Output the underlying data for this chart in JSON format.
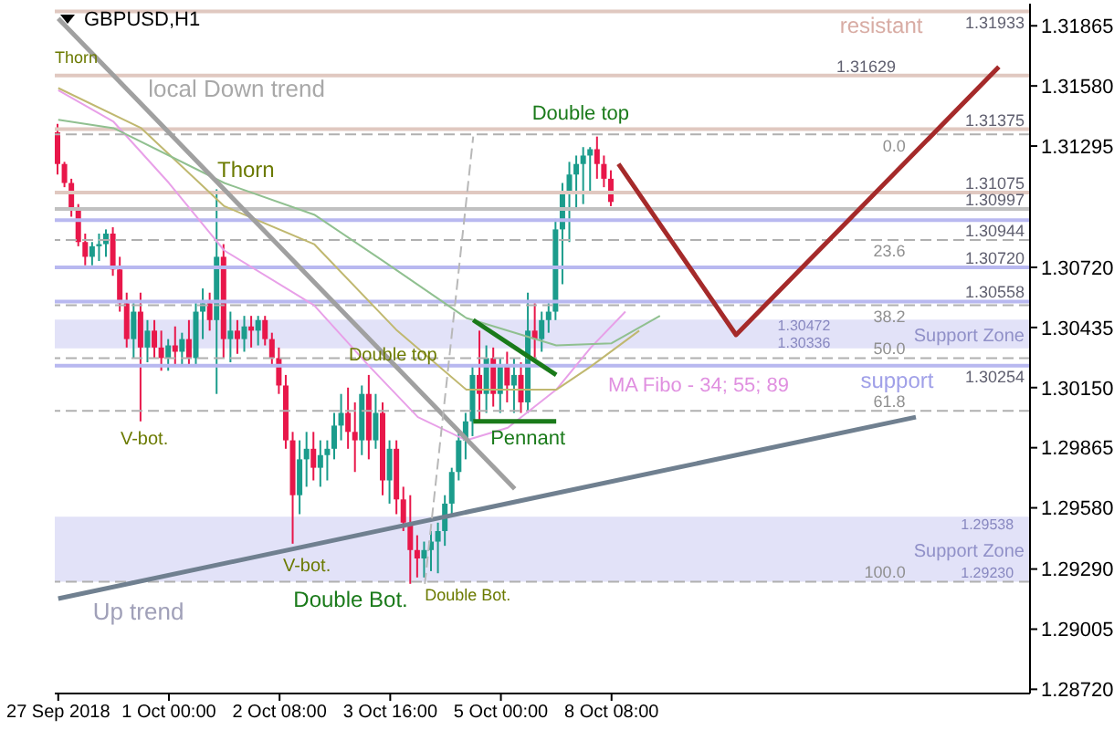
{
  "chart_data": {
    "type": "candlestick",
    "title": "GBPUSD,H1",
    "categories": [
      "27 Sep 2018",
      null,
      null,
      null,
      null,
      null,
      null,
      null,
      null,
      null,
      null,
      null,
      null,
      null,
      null,
      null,
      "1 Oct 00:00",
      null,
      null,
      null,
      null,
      null,
      null,
      null,
      null,
      null,
      null,
      null,
      null,
      null,
      null,
      null,
      "2 Oct 08:00",
      null,
      null,
      null,
      null,
      null,
      null,
      null,
      null,
      null,
      null,
      null,
      null,
      null,
      null,
      null,
      "3 Oct 16:00",
      null,
      null,
      null,
      null,
      null,
      null,
      null,
      null,
      null,
      null,
      null,
      null,
      null,
      null,
      null,
      "5 Oct 00:00",
      null,
      null,
      null,
      null,
      null,
      null,
      null,
      null,
      null,
      null,
      null,
      null,
      null,
      null,
      null,
      "8 Oct 08:00",
      null,
      null,
      null,
      null,
      null,
      null,
      null,
      null,
      null,
      null,
      null,
      null,
      null,
      null,
      null,
      null,
      null,
      null,
      null,
      null,
      null,
      null,
      null,
      null,
      null,
      null,
      null,
      null,
      null,
      null,
      null,
      null,
      null,
      null,
      null,
      null,
      null,
      null,
      null,
      null,
      null,
      null,
      null,
      null,
      null,
      null,
      null,
      null,
      null,
      null,
      null,
      null,
      null,
      null,
      null,
      null,
      null,
      null,
      null,
      null
    ],
    "ohlc": [
      [
        1.3136,
        1.314,
        1.3116,
        1.3121
      ],
      [
        1.3121,
        1.3122,
        1.311,
        1.3112
      ],
      [
        1.3112,
        1.3114,
        1.3096,
        1.3099
      ],
      [
        1.3099,
        1.3102,
        1.3082,
        1.3084
      ],
      [
        1.3084,
        1.3088,
        1.3073,
        1.3077
      ],
      [
        1.3077,
        1.3084,
        1.3073,
        1.3082
      ],
      [
        1.3082,
        1.3088,
        1.3075,
        1.3083
      ],
      [
        1.3083,
        1.309,
        1.3077,
        1.3088
      ],
      [
        1.3088,
        1.3091,
        1.3068,
        1.3071
      ],
      [
        1.3071,
        1.3077,
        1.3051,
        1.3055
      ],
      [
        1.3055,
        1.306,
        1.3034,
        1.3038
      ],
      [
        1.3038,
        1.3055,
        1.3029,
        1.3051
      ],
      [
        1.3051,
        1.306,
        1.2999,
        1.3034
      ],
      [
        1.3034,
        1.3047,
        1.3027,
        1.3042
      ],
      [
        1.3042,
        1.3047,
        1.3029,
        1.3034
      ],
      [
        1.3034,
        1.3042,
        1.3023,
        1.3029
      ],
      [
        1.3029,
        1.3038,
        1.3023,
        1.3035
      ],
      [
        1.3035,
        1.3044,
        1.3025,
        1.3032
      ],
      [
        1.3032,
        1.3041,
        1.3025,
        1.3038
      ],
      [
        1.3038,
        1.3047,
        1.3025,
        1.3029
      ],
      [
        1.3029,
        1.3055,
        1.3025,
        1.3051
      ],
      [
        1.3051,
        1.3062,
        1.3038,
        1.3055
      ],
      [
        1.3055,
        1.306,
        1.3042,
        1.3047
      ],
      [
        1.3047,
        1.3109,
        1.3012,
        1.3077
      ],
      [
        1.3077,
        1.3083,
        1.3029,
        1.3038
      ],
      [
        1.3038,
        1.3051,
        1.3027,
        1.3042
      ],
      [
        1.3042,
        1.3047,
        1.3031,
        1.3038
      ],
      [
        1.3038,
        1.3049,
        1.3032,
        1.3044
      ],
      [
        1.3044,
        1.3049,
        1.3034,
        1.3042
      ],
      [
        1.3042,
        1.3049,
        1.3035,
        1.3047
      ],
      [
        1.3047,
        1.3049,
        1.3035,
        1.3038
      ],
      [
        1.3038,
        1.3041,
        1.3025,
        1.3029
      ],
      [
        1.3029,
        1.3034,
        1.3012,
        1.3016
      ],
      [
        1.3016,
        1.3021,
        1.2986,
        1.299
      ],
      [
        1.299,
        1.2994,
        1.2941,
        1.2964
      ],
      [
        1.2964,
        1.299,
        1.2955,
        1.2981
      ],
      [
        1.2981,
        1.2994,
        1.2968,
        1.2986
      ],
      [
        1.2986,
        1.2994,
        1.2971,
        1.2977
      ],
      [
        1.2977,
        1.299,
        1.2968,
        1.2983
      ],
      [
        1.2983,
        1.299,
        1.2971,
        1.2986
      ],
      [
        1.2986,
        1.3003,
        1.2981,
        1.2997
      ],
      [
        1.2997,
        1.3012,
        1.299,
        1.3003
      ],
      [
        1.3003,
        1.3015,
        1.2986,
        1.2994
      ],
      [
        1.2994,
        1.3008,
        1.2975,
        1.299
      ],
      [
        1.299,
        1.3016,
        1.2983,
        1.3012
      ],
      [
        1.3012,
        1.3021,
        1.2981,
        1.299
      ],
      [
        1.299,
        1.3012,
        1.2986,
        1.3003
      ],
      [
        1.3003,
        1.3008,
        1.2964,
        1.2971
      ],
      [
        1.2971,
        1.299,
        1.296,
        1.2986
      ],
      [
        1.2986,
        1.299,
        1.2955,
        1.2962
      ],
      [
        1.2962,
        1.2968,
        1.2947,
        1.2951
      ],
      [
        1.2951,
        1.2964,
        1.2922,
        1.2938
      ],
      [
        1.2938,
        1.2945,
        1.2925,
        1.2934
      ],
      [
        1.2934,
        1.2942,
        1.2925,
        1.2938
      ],
      [
        1.2938,
        1.2947,
        1.2928,
        1.2942
      ],
      [
        1.2942,
        1.2951,
        1.2927,
        1.2947
      ],
      [
        1.2947,
        1.2964,
        1.294,
        1.296
      ],
      [
        1.296,
        1.2977,
        1.2954,
        1.2975
      ],
      [
        1.2975,
        1.2994,
        1.2971,
        1.299
      ],
      [
        1.299,
        1.3003,
        1.2981,
        1.2999
      ],
      [
        1.2999,
        1.3025,
        1.2992,
        1.3021
      ],
      [
        1.3021,
        1.3042,
        1.2999,
        1.3012
      ],
      [
        1.3012,
        1.3035,
        1.3003,
        1.3029
      ],
      [
        1.3029,
        1.3034,
        1.3006,
        1.3012
      ],
      [
        1.3012,
        1.3029,
        1.3003,
        1.3025
      ],
      [
        1.3025,
        1.3032,
        1.3008,
        1.3016
      ],
      [
        1.3016,
        1.3029,
        1.3003,
        1.3021
      ],
      [
        1.3021,
        1.3027,
        1.3003,
        1.3008
      ],
      [
        1.3008,
        1.306,
        1.3003,
        1.3042
      ],
      [
        1.3042,
        1.3055,
        1.3029,
        1.3038
      ],
      [
        1.3038,
        1.3051,
        1.3032,
        1.3047
      ],
      [
        1.3047,
        1.3055,
        1.3041,
        1.3051
      ],
      [
        1.3051,
        1.3095,
        1.3047,
        1.309
      ],
      [
        1.309,
        1.3112,
        1.3064,
        1.3108
      ],
      [
        1.3108,
        1.3122,
        1.3084,
        1.3116
      ],
      [
        1.3116,
        1.3125,
        1.3099,
        1.3121
      ],
      [
        1.3121,
        1.3129,
        1.3102,
        1.3125
      ],
      [
        1.3125,
        1.3129,
        1.3108,
        1.3128
      ],
      [
        1.3128,
        1.3134,
        1.3114,
        1.3121
      ],
      [
        1.3121,
        1.3125,
        1.311,
        1.3114
      ],
      [
        1.3114,
        1.3118,
        1.3101,
        1.3103
      ],
      null,
      null,
      null,
      null,
      null,
      null,
      null,
      null,
      null,
      null,
      null,
      null,
      null,
      null,
      null,
      null,
      null,
      null,
      null,
      null,
      null,
      null,
      null,
      null,
      null,
      null,
      null,
      null,
      null,
      null,
      null,
      null,
      null,
      null,
      null,
      null,
      null,
      null,
      null,
      null,
      null,
      null,
      null,
      null,
      null,
      null,
      null,
      null,
      null,
      null,
      null,
      null,
      null,
      null,
      null,
      null,
      null,
      null,
      null,
      null
    ],
    "series": [
      {
        "type": "line",
        "color": "#e8a0e8",
        "values": [
          1.3156,
          null,
          null,
          null,
          null,
          null,
          null,
          null,
          1.3141,
          null,
          null,
          null,
          null,
          null,
          null,
          null,
          1.3112,
          null,
          null,
          null,
          null,
          null,
          null,
          null,
          1.308,
          null,
          null,
          null,
          null,
          null,
          null,
          null,
          null,
          null,
          null,
          null,
          null,
          1.3054,
          null,
          null,
          null,
          null,
          null,
          null,
          null,
          1.3025,
          null,
          null,
          null,
          null,
          null,
          null,
          1.3001,
          null,
          null,
          null,
          null,
          null,
          null,
          1.299,
          null,
          null,
          null,
          null,
          null,
          1.2996,
          null,
          null,
          null,
          null,
          null,
          null,
          1.3014,
          null,
          null,
          null,
          null,
          1.3034,
          null,
          null,
          null,
          null,
          1.3051,
          null,
          null,
          null,
          null,
          null,
          null,
          null,
          null,
          null,
          null,
          null,
          null,
          null,
          null,
          null,
          null,
          null,
          null,
          null,
          null,
          null,
          null,
          null,
          null,
          null,
          null,
          null,
          null,
          null,
          null,
          null,
          null,
          null,
          null,
          null,
          null,
          null,
          null,
          null,
          null,
          null,
          null,
          null,
          null,
          null,
          null,
          null,
          null,
          null,
          null,
          null,
          null,
          null,
          null,
          null,
          null,
          null,
          null
        ]
      },
      {
        "type": "line",
        "color": "#c0b870",
        "values": [
          1.3157,
          null,
          null,
          null,
          null,
          null,
          null,
          null,
          null,
          null,
          null,
          null,
          1.3138,
          null,
          null,
          null,
          null,
          null,
          null,
          null,
          null,
          null,
          null,
          null,
          1.3101,
          null,
          null,
          null,
          null,
          null,
          null,
          null,
          null,
          null,
          null,
          null,
          null,
          1.3083,
          null,
          null,
          null,
          null,
          null,
          null,
          null,
          null,
          null,
          null,
          null,
          1.3042,
          null,
          null,
          null,
          null,
          null,
          null,
          null,
          null,
          null,
          1.3014,
          null,
          null,
          null,
          null,
          null,
          null,
          null,
          null,
          null,
          null,
          null,
          null,
          1.3014,
          null,
          null,
          null,
          null,
          1.3025,
          null,
          null,
          null,
          null,
          null,
          null,
          1.3042,
          null,
          null,
          null,
          null,
          null,
          null,
          null,
          null,
          null,
          null,
          null,
          null,
          null,
          null,
          null,
          null,
          null,
          null,
          null,
          null,
          null,
          null,
          null,
          null,
          null,
          null,
          null,
          null,
          null,
          null,
          null,
          null,
          null,
          null,
          null,
          null,
          null,
          null,
          null,
          null,
          null,
          null,
          null,
          null,
          null,
          null,
          null,
          null,
          null,
          null,
          null,
          null,
          null,
          null,
          null,
          null
        ]
      },
      {
        "type": "line",
        "color": "#90c090",
        "values": [
          1.3142,
          null,
          null,
          null,
          null,
          null,
          null,
          null,
          1.3138,
          null,
          null,
          null,
          null,
          null,
          null,
          null,
          null,
          null,
          null,
          null,
          null,
          null,
          null,
          null,
          1.3112,
          null,
          null,
          null,
          null,
          null,
          null,
          null,
          null,
          null,
          null,
          null,
          null,
          1.3097,
          null,
          null,
          null,
          null,
          null,
          null,
          null,
          null,
          null,
          1.3075,
          null,
          null,
          null,
          null,
          null,
          null,
          null,
          null,
          null,
          null,
          null,
          1.3048,
          null,
          null,
          null,
          null,
          null,
          null,
          null,
          null,
          null,
          null,
          null,
          null,
          1.3035,
          null,
          null,
          null,
          null,
          null,
          null,
          null,
          1.3036,
          null,
          null,
          null,
          null,
          null,
          null,
          1.3049,
          null,
          null,
          null,
          null,
          null,
          null,
          null,
          null,
          null,
          null,
          null,
          null,
          null,
          null,
          null,
          null,
          null,
          null,
          null,
          null,
          null,
          null,
          null,
          null,
          null,
          null,
          null,
          null,
          null,
          null,
          null,
          null,
          null,
          null,
          null,
          null,
          null,
          null,
          null,
          null,
          null,
          null,
          null,
          null,
          null,
          null,
          null,
          null,
          null,
          null,
          null,
          null,
          null
        ]
      },
      {
        "type": "line",
        "color": "#a0a0a0",
        "values": [
          1.319,
          null,
          null,
          null,
          null,
          null,
          null,
          null,
          null,
          null,
          null,
          null,
          null,
          null,
          null,
          null,
          null,
          null,
          null,
          null,
          null,
          null,
          null,
          null,
          null,
          null,
          null,
          null,
          null,
          null,
          null,
          null,
          null,
          null,
          null,
          null,
          null,
          null,
          null,
          null,
          null,
          null,
          null,
          null,
          null,
          null,
          null,
          null,
          null,
          null,
          null,
          null,
          null,
          null,
          null,
          null,
          null,
          null,
          null,
          null,
          null,
          null,
          null,
          null,
          null,
          null,
          1.2967,
          null,
          null,
          null,
          null,
          null,
          null,
          null,
          null,
          null,
          null,
          null,
          null,
          null,
          null,
          null,
          null,
          null,
          null,
          null,
          null,
          null,
          null,
          null,
          null,
          null,
          null,
          null,
          null,
          null,
          null,
          null,
          null,
          null,
          null,
          null,
          null,
          null,
          null,
          null,
          null,
          null,
          null,
          null,
          null,
          null,
          null,
          null,
          null,
          null,
          null,
          null,
          null,
          null,
          null,
          null,
          null,
          null,
          null,
          null,
          null,
          null,
          null,
          null,
          null,
          null,
          null,
          null,
          null,
          null,
          null,
          null,
          null,
          null,
          null
        ]
      },
      {
        "type": "line",
        "color": "#708090",
        "values": [
          1.2915,
          null,
          null,
          null,
          null,
          null,
          null,
          null,
          null,
          null,
          null,
          null,
          null,
          null,
          null,
          null,
          null,
          null,
          null,
          null,
          null,
          null,
          null,
          null,
          null,
          null,
          null,
          null,
          null,
          null,
          null,
          null,
          null,
          null,
          null,
          null,
          null,
          null,
          null,
          null,
          null,
          null,
          null,
          null,
          null,
          null,
          null,
          null,
          null,
          null,
          null,
          null,
          null,
          null,
          null,
          null,
          null,
          null,
          null,
          null,
          null,
          null,
          null,
          null,
          null,
          null,
          null,
          null,
          null,
          null,
          null,
          null,
          null,
          null,
          null,
          null,
          null,
          null,
          null,
          null,
          null,
          null,
          null,
          null,
          null,
          null,
          null,
          null,
          null,
          null,
          null,
          null,
          null,
          null,
          null,
          null,
          null,
          null,
          null,
          null,
          null,
          null,
          null,
          null,
          null,
          null,
          null,
          null,
          null,
          null,
          null,
          null,
          null,
          null,
          null,
          null,
          null,
          null,
          null,
          null,
          null,
          null,
          null,
          null,
          1.3001,
          null,
          null,
          null,
          null,
          null,
          null,
          null,
          null,
          null,
          null,
          null,
          null,
          null,
          null,
          null,
          null
        ]
      },
      {
        "type": "line",
        "color": "#a52a2a",
        "values": [
          null,
          null,
          null,
          null,
          null,
          null,
          null,
          null,
          null,
          null,
          null,
          null,
          null,
          null,
          null,
          null,
          null,
          null,
          null,
          null,
          null,
          null,
          null,
          null,
          null,
          null,
          null,
          null,
          null,
          null,
          null,
          null,
          null,
          null,
          null,
          null,
          null,
          null,
          null,
          null,
          null,
          null,
          null,
          null,
          null,
          null,
          null,
          null,
          null,
          null,
          null,
          null,
          null,
          null,
          null,
          null,
          null,
          null,
          null,
          null,
          null,
          null,
          null,
          null,
          null,
          null,
          null,
          null,
          null,
          null,
          null,
          null,
          null,
          null,
          null,
          null,
          null,
          null,
          null,
          null,
          null,
          1.3121,
          null,
          null,
          null,
          null,
          null,
          null,
          null,
          null,
          null,
          null,
          null,
          null,
          null,
          null,
          null,
          null,
          1.304,
          null,
          null,
          null,
          null,
          null,
          null,
          null,
          null,
          null,
          null,
          null,
          null,
          null,
          null,
          null,
          null,
          null,
          null,
          null,
          null,
          null,
          null,
          null,
          null,
          null,
          null,
          null,
          null,
          null,
          null,
          null,
          null,
          null,
          null,
          null,
          null,
          null,
          1.3167,
          null,
          null,
          null,
          null
        ]
      },
      {
        "type": "line",
        "color": "#1a7a1a",
        "values": [
          null,
          null,
          null,
          null,
          null,
          null,
          null,
          null,
          null,
          null,
          null,
          null,
          null,
          null,
          null,
          null,
          null,
          null,
          null,
          null,
          null,
          null,
          null,
          null,
          null,
          null,
          null,
          null,
          null,
          null,
          null,
          null,
          null,
          null,
          null,
          null,
          null,
          null,
          null,
          null,
          null,
          null,
          null,
          null,
          null,
          null,
          null,
          null,
          null,
          null,
          null,
          null,
          null,
          null,
          null,
          null,
          null,
          null,
          null,
          null,
          1.3047,
          null,
          null,
          null,
          null,
          null,
          null,
          null,
          null,
          null,
          null,
          null,
          1.3021,
          null,
          null,
          null,
          null,
          null,
          null,
          null,
          null,
          null,
          null,
          null,
          null,
          null,
          null,
          null,
          null,
          null,
          null,
          null,
          null,
          null,
          null,
          null,
          null,
          null,
          null,
          null,
          null,
          null,
          null,
          null,
          null,
          null,
          null,
          null,
          null,
          null,
          null,
          null,
          null,
          null,
          null,
          null,
          null,
          null,
          null,
          null,
          null,
          null,
          null,
          null,
          null,
          null,
          null,
          null,
          null,
          null,
          null,
          null,
          null,
          null,
          null,
          null,
          null,
          null,
          null,
          null,
          null
        ]
      },
      {
        "type": "line",
        "color": "#1a7a1a",
        "values": [
          null,
          null,
          null,
          null,
          null,
          null,
          null,
          null,
          null,
          null,
          null,
          null,
          null,
          null,
          null,
          null,
          null,
          null,
          null,
          null,
          null,
          null,
          null,
          null,
          null,
          null,
          null,
          null,
          null,
          null,
          null,
          null,
          null,
          null,
          null,
          null,
          null,
          null,
          null,
          null,
          null,
          null,
          null,
          null,
          null,
          null,
          null,
          null,
          null,
          null,
          null,
          null,
          null,
          null,
          null,
          null,
          null,
          null,
          null,
          null,
          1.2999,
          null,
          null,
          null,
          null,
          null,
          null,
          null,
          null,
          null,
          null,
          null,
          1.2999,
          null,
          null,
          null,
          null,
          null,
          null,
          null,
          null,
          null,
          null,
          null,
          null,
          null,
          null,
          null,
          null,
          null,
          null,
          null,
          null,
          null,
          null,
          null,
          null,
          null,
          null,
          null,
          null,
          null,
          null,
          null,
          null,
          null,
          null,
          null,
          null,
          null,
          null,
          null,
          null,
          null,
          null,
          null,
          null,
          null,
          null,
          null,
          null,
          null,
          null,
          null,
          null,
          null,
          null,
          null,
          null,
          null,
          null,
          null,
          null,
          null,
          null,
          null,
          null,
          null,
          null,
          null,
          null
        ]
      },
      {
        "type": "line",
        "color": "#b8b8b8",
        "line_style": "dashed",
        "values": [
          null,
          null,
          null,
          null,
          null,
          null,
          null,
          null,
          null,
          null,
          null,
          null,
          null,
          null,
          null,
          null,
          null,
          null,
          null,
          null,
          null,
          null,
          null,
          null,
          null,
          null,
          null,
          null,
          null,
          null,
          null,
          null,
          null,
          null,
          null,
          null,
          null,
          null,
          null,
          null,
          null,
          null,
          null,
          null,
          null,
          null,
          null,
          null,
          null,
          null,
          null,
          null,
          null,
          1.2922,
          null,
          null,
          null,
          null,
          null,
          null,
          1.3134,
          null,
          null,
          null,
          null,
          null,
          null,
          null,
          null,
          null,
          null,
          null,
          null,
          null,
          null,
          null,
          null,
          null,
          null,
          null,
          null,
          null,
          null,
          null,
          null,
          null,
          null,
          null,
          null,
          null,
          null,
          null,
          null,
          null,
          null,
          null,
          null,
          null,
          null,
          null,
          null,
          null,
          null,
          null,
          null,
          null,
          null,
          null,
          null,
          null,
          null,
          null,
          null,
          null,
          null,
          null,
          null,
          null,
          null,
          null,
          null,
          null,
          null,
          null,
          null,
          null,
          null,
          null,
          null,
          null,
          null,
          null,
          null,
          null,
          null,
          null,
          null,
          null,
          null,
          null,
          null
        ]
      }
    ],
    "ylim": [
      1.287,
      1.3197
    ],
    "yticks": [
      1.31865,
      {
        "value": 1.3158,
        "label": "1.31580"
      },
      1.31295,
      {
        "value": 1.3072,
        "label": "1.30720"
      },
      1.30435,
      {
        "value": 1.3015,
        "label": "1.30150"
      },
      1.29865,
      {
        "value": 1.2958,
        "label": "1.29580"
      },
      {
        "value": 1.2929,
        "label": "1.29290"
      },
      1.29005,
      {
        "value": 1.2872,
        "label": "1.28720"
      }
    ],
    "ref_lines": [
      {
        "axis": "y",
        "value": 1.31933,
        "label": "1.31933",
        "color": "#e0c8c0"
      },
      {
        "axis": "y",
        "value": 1.31629,
        "label": "1.31629",
        "color": "#e0c8c0"
      },
      {
        "axis": "y",
        "value": 1.31375,
        "label": "1.31375",
        "color": "#e0c8c0"
      },
      {
        "axis": "y",
        "value": 1.31075,
        "label": "1.31075",
        "color": "#e0c8c0"
      },
      {
        "axis": "y",
        "value": 1.30997,
        "label": "1.30997",
        "color": "#c0c0c0"
      },
      {
        "axis": "y",
        "value": 1.30944,
        "label": "1.30944",
        "color": "#b8b8f0"
      },
      {
        "axis": "y",
        "value": 1.3072,
        "label": "1.30720",
        "color": "#b8b8f0"
      },
      {
        "axis": "y",
        "value": 1.30558,
        "label": "1.30558",
        "color": "#b8b8f0"
      },
      {
        "axis": "y",
        "value": 1.30254,
        "label": "1.30254",
        "color": "#b8b8f0"
      },
      {
        "axis": "y",
        "value": 1.3135,
        "color": "#b0b0b0",
        "line_style": "dashed"
      },
      {
        "axis": "y",
        "value": 1.3085,
        "color": "#b0b0b0",
        "line_style": "dashed"
      },
      {
        "axis": "y",
        "value": 1.3054,
        "color": "#b0b0b0",
        "line_style": "dashed"
      },
      {
        "axis": "y",
        "value": 1.3029,
        "color": "#b0b0b0",
        "line_style": "dashed"
      },
      {
        "axis": "y",
        "value": 1.3004,
        "color": "#b0b0b0",
        "line_style": "dashed"
      },
      {
        "axis": "y",
        "value": 1.2923,
        "color": "#b0b0b0",
        "line_style": "dashed"
      }
    ],
    "bands": [
      {
        "axis": "y",
        "from": 1.30336,
        "to": 1.30472,
        "label": "Support Zone",
        "color": "#e2e2f8"
      },
      {
        "axis": "y",
        "from": 1.2923,
        "to": 1.29538,
        "label": "Support Zone",
        "color": "#e2e2f8"
      }
    ],
    "annotations": [
      "Thorn",
      "local Down trend",
      "Thorn",
      "resistant",
      "Double top",
      "Double top",
      "V-bot.",
      "V-bot.",
      "Double Bot.",
      "Double Bot.",
      "Pennant",
      "MA Fibo - 34; 55; 89",
      "support",
      "Up trend",
      "1.30472",
      "1.30336",
      "1.29538",
      "1.29230",
      "0.0",
      "23.6",
      "38.2",
      "50.0",
      "61.8",
      "100.0"
    ]
  }
}
